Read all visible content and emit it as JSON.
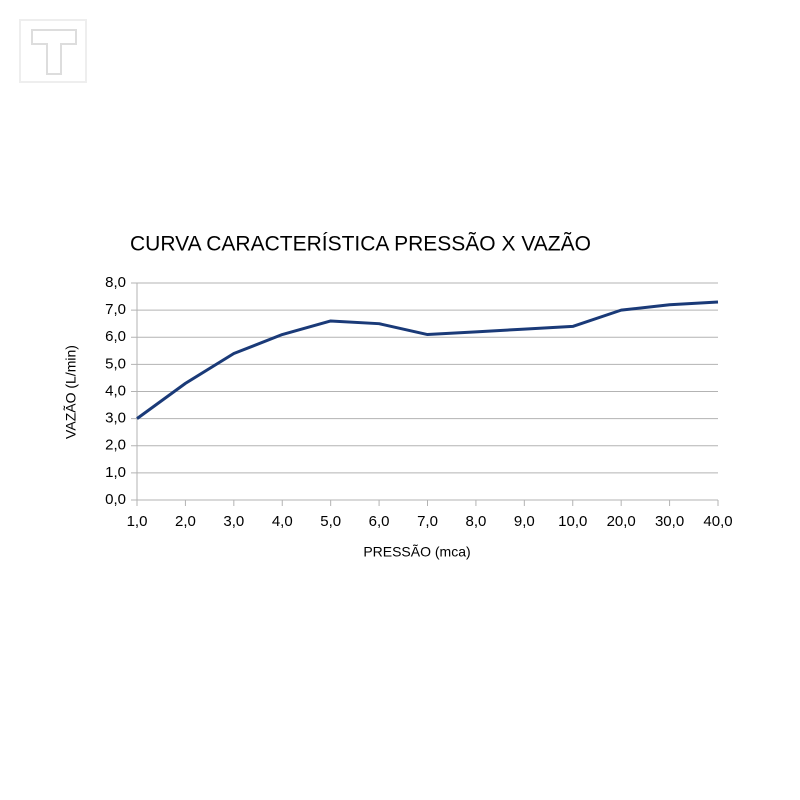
{
  "chart_data": {
    "type": "line",
    "title": "CURVA CARACTERÍSTICA PRESSÃO X VAZÃO",
    "x_label": "PRESSÃO (mca)",
    "y_label": "VAZÃO (L/min)",
    "categories": [
      "1,0",
      "2,0",
      "3,0",
      "4,0",
      "5,0",
      "6,0",
      "7,0",
      "8,0",
      "9,0",
      "10,0",
      "20,0",
      "30,0",
      "40,0"
    ],
    "values": [
      3.0,
      4.3,
      5.4,
      6.1,
      6.6,
      6.5,
      6.1,
      6.2,
      6.3,
      6.4,
      7.0,
      7.2,
      7.3
    ],
    "color": "#1a3a78",
    "ylim": [
      0,
      8
    ],
    "yticks": [
      {
        "value": 0,
        "label": "0,0"
      },
      {
        "value": 1,
        "label": "1,0"
      },
      {
        "value": 2,
        "label": "2,0"
      },
      {
        "value": 3,
        "label": "3,0"
      },
      {
        "value": 4,
        "label": "4,0"
      },
      {
        "value": 5,
        "label": "5,0"
      },
      {
        "value": 6,
        "label": "6,0"
      },
      {
        "value": 7,
        "label": "7,0"
      },
      {
        "value": 8,
        "label": "8,0"
      }
    ],
    "grid": true
  }
}
